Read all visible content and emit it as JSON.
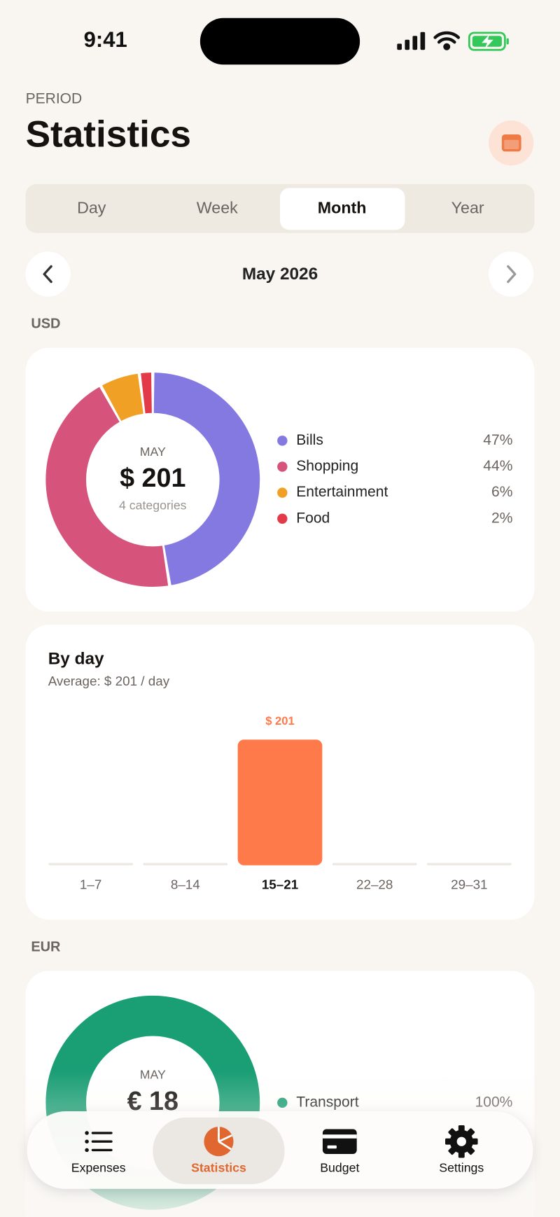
{
  "status": {
    "time": "9:41"
  },
  "header": {
    "overline": "PERIOD",
    "title": "Statistics"
  },
  "tabs": {
    "items": [
      "Day",
      "Week",
      "Month",
      "Year"
    ],
    "active": 2
  },
  "period": "May 2026",
  "currencies": [
    {
      "code": "USD",
      "donut": {
        "type": "pie",
        "center_label": "MAY",
        "total": "$ 201",
        "subtitle": "4 categories",
        "categories": [
          "Bills",
          "Shopping",
          "Entertainment",
          "Food"
        ],
        "values": [
          47,
          44,
          6,
          2
        ],
        "value_labels": [
          "47%",
          "44%",
          "6%",
          "2%"
        ],
        "colors": [
          "#8479e0",
          "#d6537c",
          "#f0a024",
          "#e23a48"
        ]
      },
      "by_day": {
        "type": "bar",
        "title": "By day",
        "subtitle": "Average: $ 201 / day",
        "categories": [
          "1–7",
          "8–14",
          "15–21",
          "22–28",
          "29–31"
        ],
        "values": [
          0,
          0,
          201,
          0,
          0
        ],
        "value_labels": [
          null,
          null,
          "$ 201",
          null,
          null
        ],
        "color": "#ff7a4a"
      }
    },
    {
      "code": "EUR",
      "donut": {
        "type": "pie",
        "center_label": "MAY",
        "total": "€ 18",
        "categories": [
          "Transport"
        ],
        "values": [
          100
        ],
        "value_labels": [
          "100%"
        ],
        "colors": [
          "#1a9e74"
        ]
      }
    }
  ],
  "nav": {
    "items": [
      "Expenses",
      "Statistics",
      "Budget",
      "Settings"
    ],
    "active": 1
  }
}
